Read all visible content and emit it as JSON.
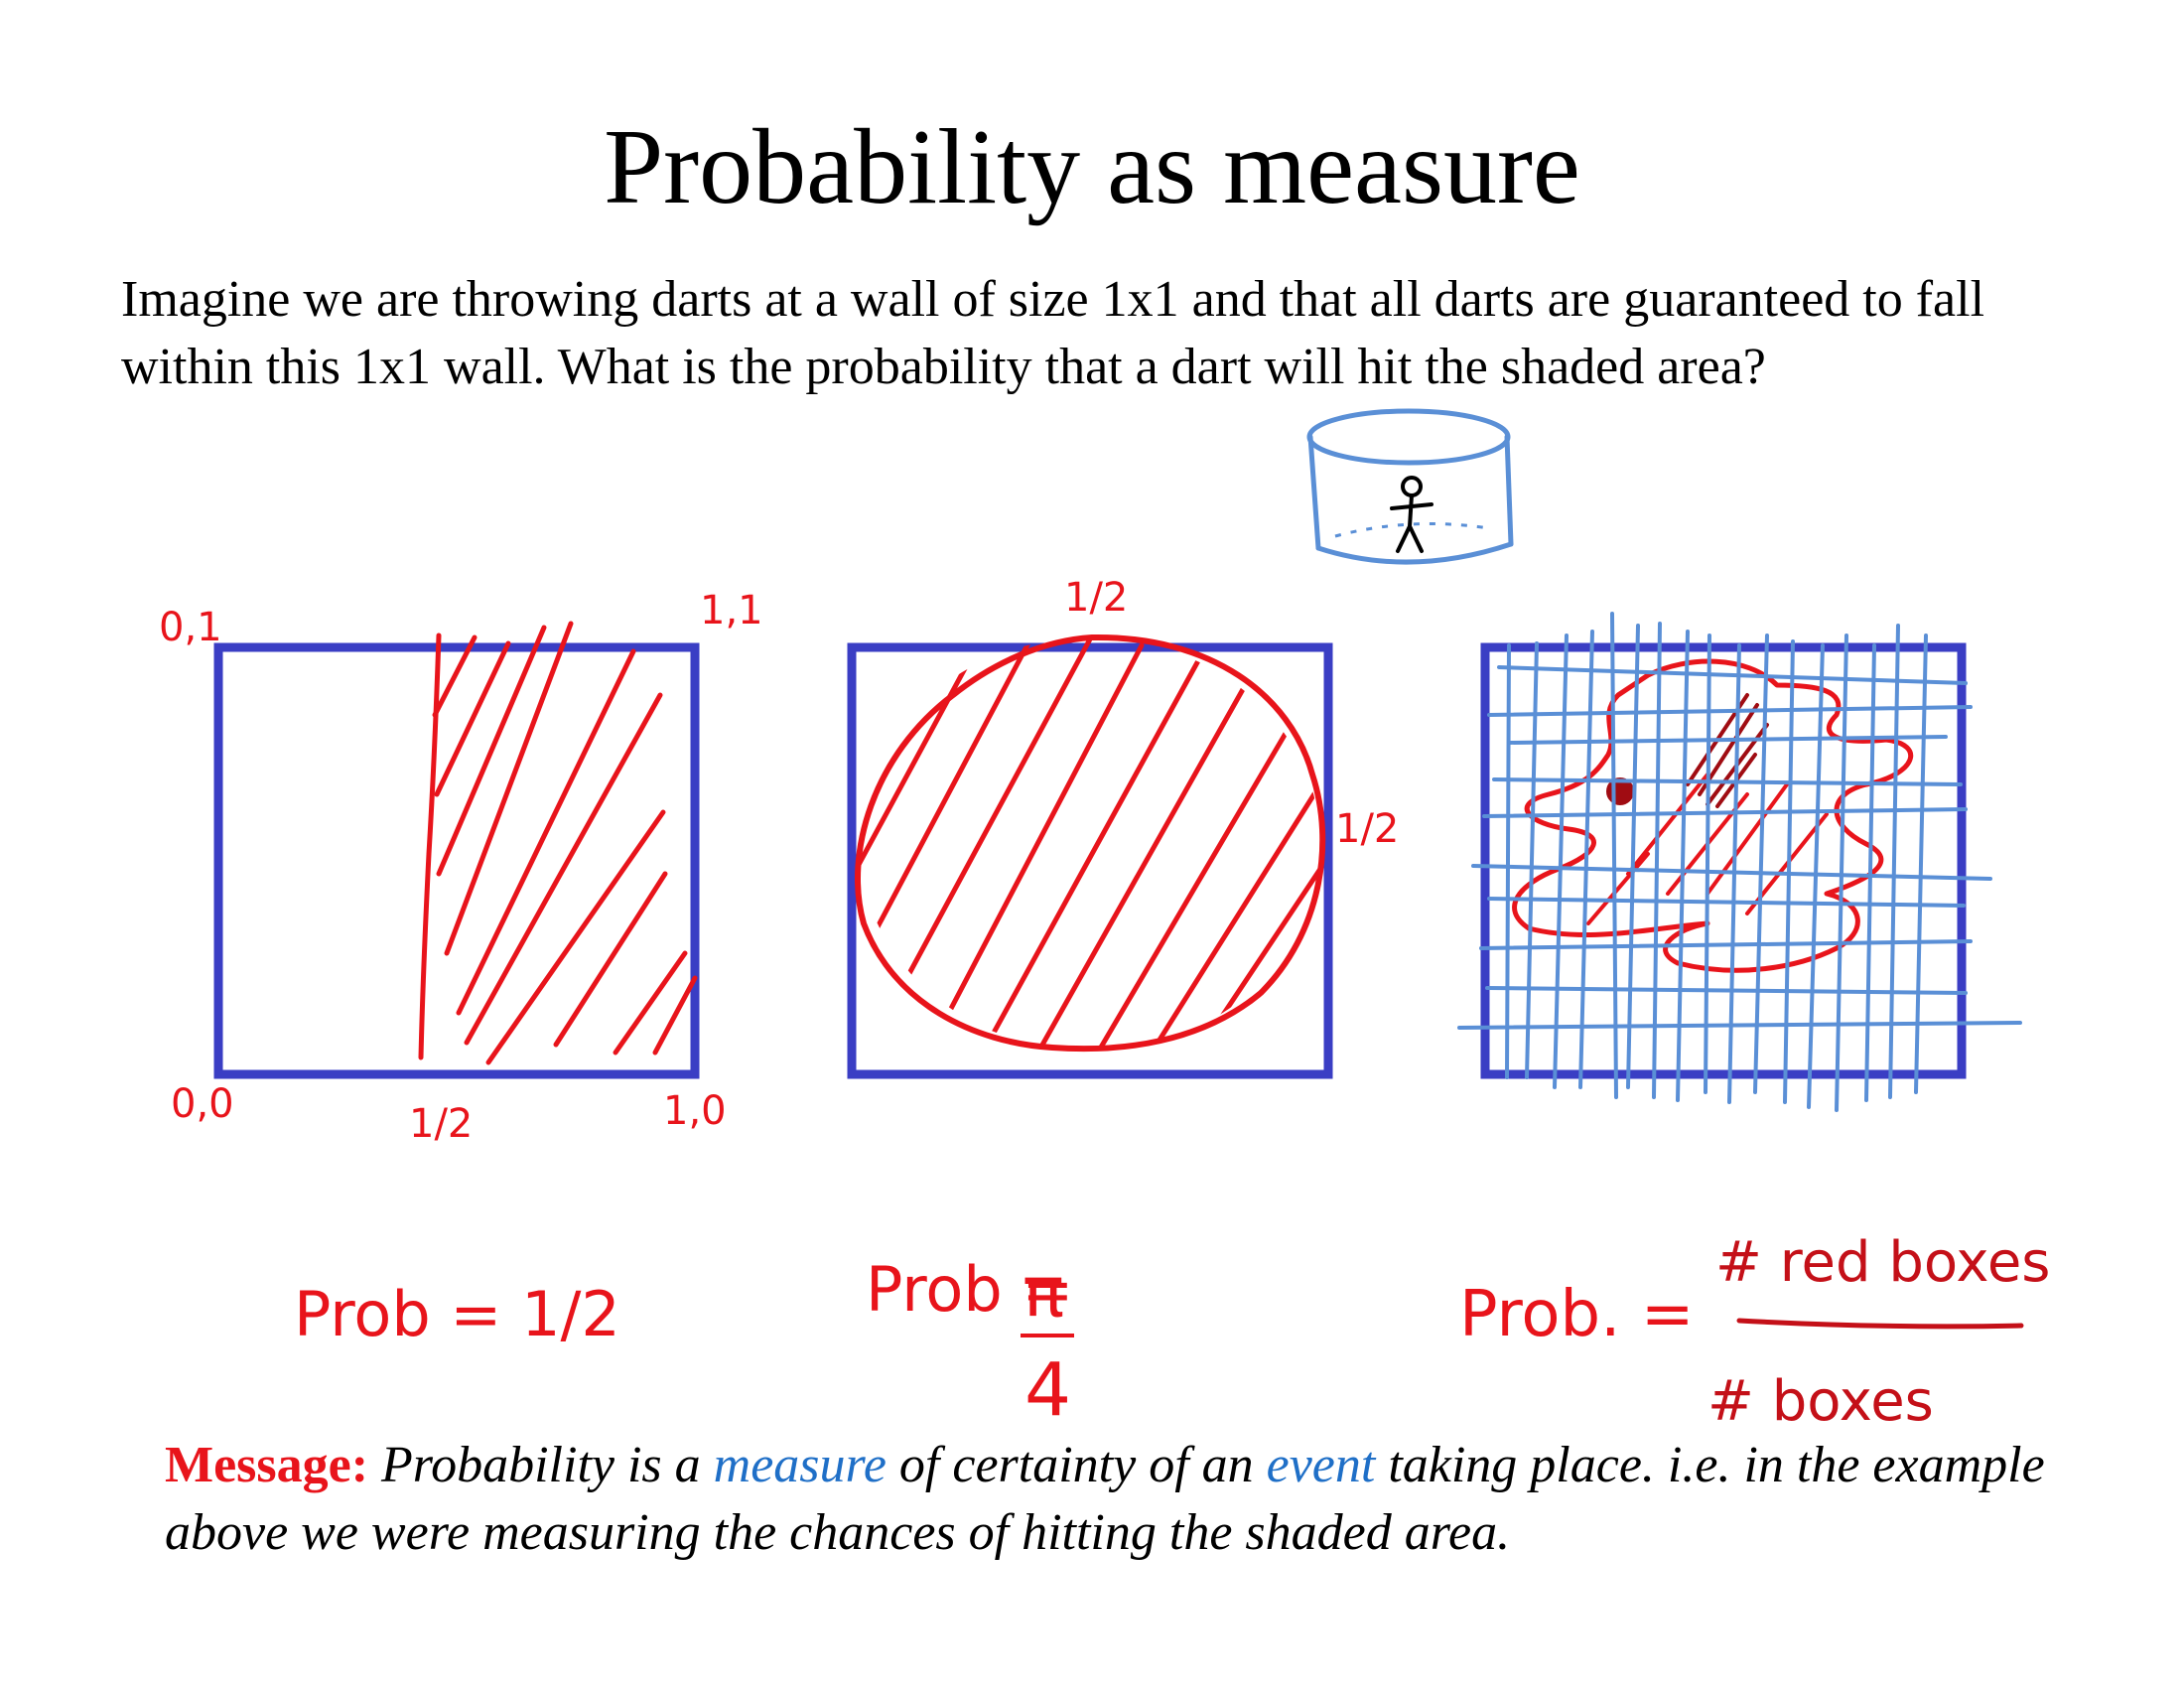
{
  "title": "Probability as measure",
  "intro": "Imagine we are throwing darts at a wall of size 1x1 and that all darts are guaranteed to fall within this 1x1 wall. What is the probability that a dart will hit the shaded area?",
  "message": {
    "label": "Message:",
    "part1": " Probability is a ",
    "word1": "measure",
    "part2": " of certainty of an ",
    "word2": "event",
    "part3": " taking place. i.e. in the example above we were measuring the chances of hitting the shaded area."
  },
  "annotations": {
    "corner_top_left": "0,1",
    "corner_top_right": "1,1",
    "corner_bottom_left": "0,0",
    "corner_bottom_right": "1,0",
    "half_bottom": "1/2",
    "half_top": "1/2",
    "half_right": "1/2",
    "prob1": "Prob = 1/2",
    "prob2_label": "Prob =",
    "prob2_num": "π",
    "prob2_den": "4",
    "prob3_label": "Prob. =",
    "prob3_num": "# red boxes",
    "prob3_den": "# boxes"
  },
  "colors": {
    "box": "#3a3ec4",
    "ink_red": "#e8141b",
    "ink_blue": "#5a8fd6",
    "highlight_blue": "#1f6fc7"
  },
  "icons": [
    "stick-figure-in-cylinder-icon"
  ]
}
